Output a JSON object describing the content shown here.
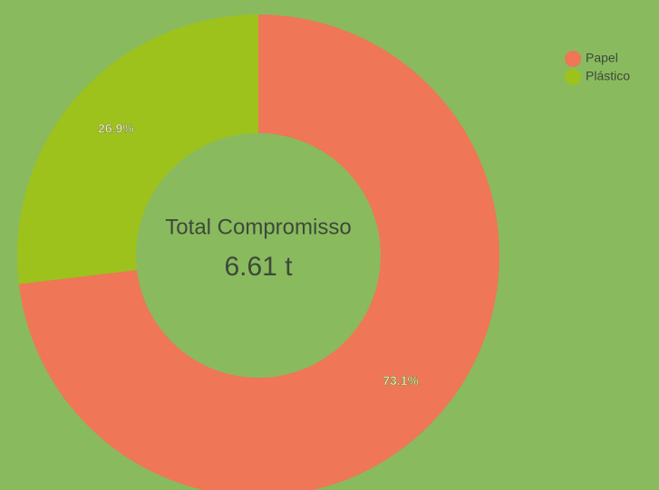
{
  "chart_data": {
    "type": "doughnut",
    "center_title": "Total Compromisso",
    "center_label": "6.61 t",
    "categories": [
      "Papel",
      "Plástico"
    ],
    "values": [
      73.1,
      26.9
    ],
    "value_labels": [
      "73.1%",
      "26.9%"
    ],
    "colors": [
      "#ef7657",
      "#9dc21b"
    ],
    "legend": "top-right"
  }
}
